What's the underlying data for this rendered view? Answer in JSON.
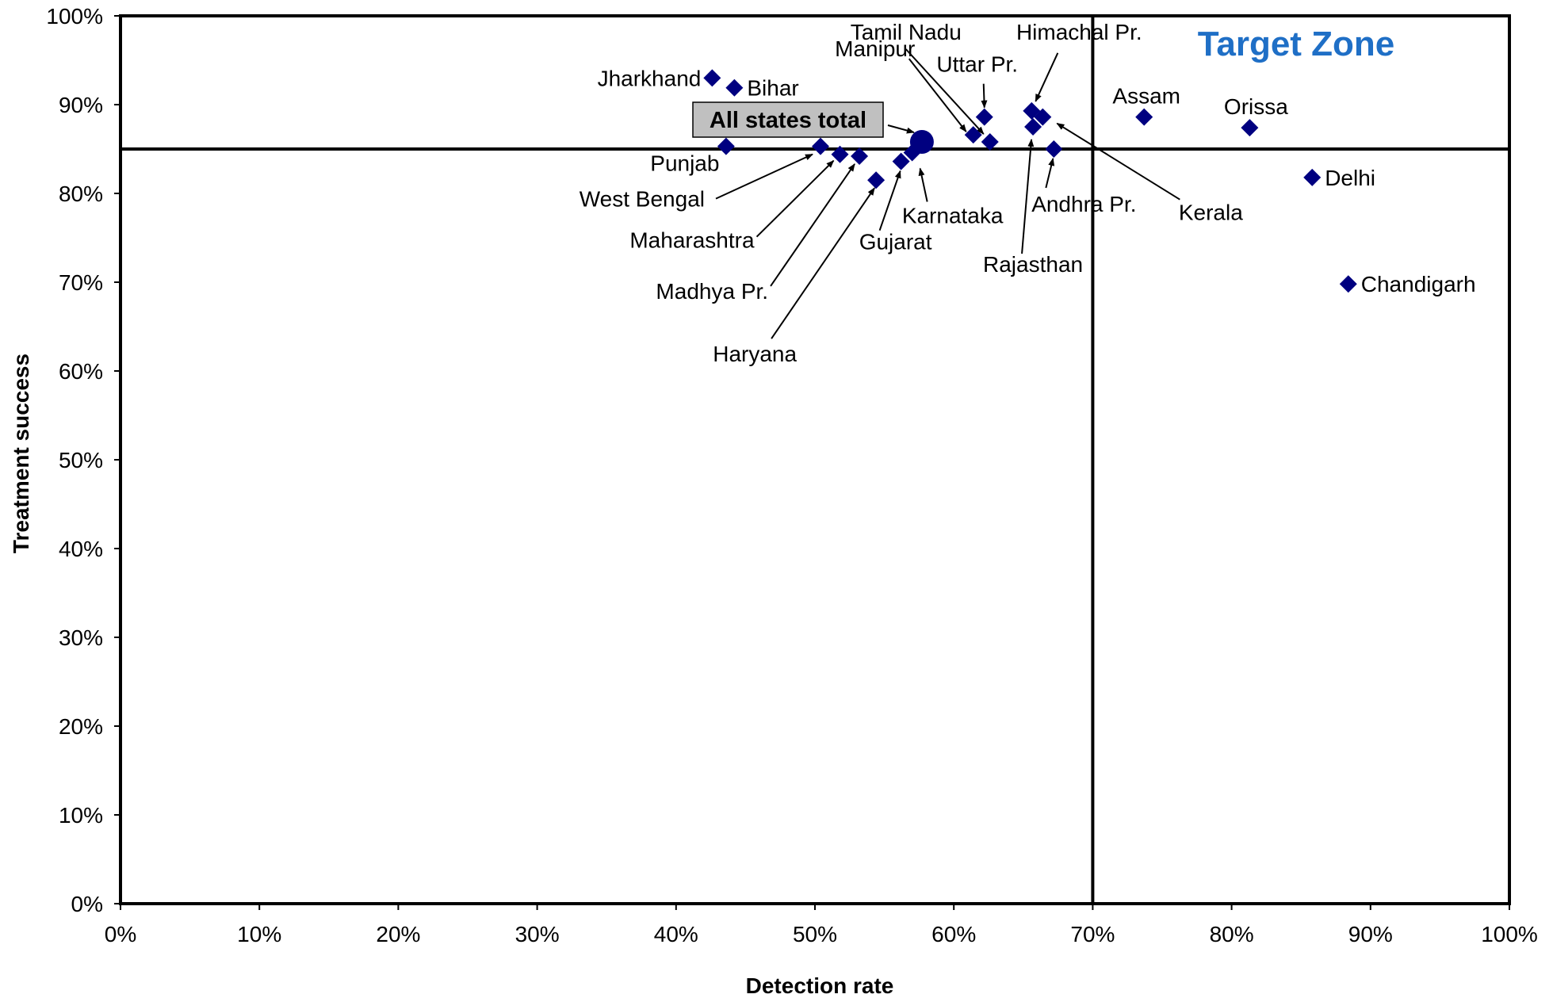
{
  "chart_data": {
    "type": "scatter",
    "title": "",
    "xlabel": "Detection rate",
    "ylabel": "Treatment success",
    "xlim": [
      0,
      100
    ],
    "ylim": [
      0,
      100
    ],
    "x_ticks": [
      "0%",
      "10%",
      "20%",
      "30%",
      "40%",
      "50%",
      "60%",
      "70%",
      "80%",
      "90%",
      "100%"
    ],
    "y_ticks": [
      "0%",
      "10%",
      "20%",
      "30%",
      "40%",
      "50%",
      "60%",
      "70%",
      "80%",
      "90%",
      "100%"
    ],
    "grid": false,
    "target_lines": {
      "x": 70,
      "y": 85
    },
    "zone_label": "Target Zone",
    "colors": {
      "marker": "#000080",
      "zone_label": "#1F6FC6",
      "total_box": "#C0C0C0"
    },
    "total": {
      "name": "All states total",
      "x": 57.7,
      "y": 85.8
    },
    "points": [
      {
        "name": "Jharkhand",
        "x": 42.6,
        "y": 93.0
      },
      {
        "name": "Bihar",
        "x": 44.2,
        "y": 91.9
      },
      {
        "name": "Punjab",
        "x": 43.6,
        "y": 85.3
      },
      {
        "name": "West Bengal",
        "x": 50.4,
        "y": 85.3
      },
      {
        "name": "Maharashtra",
        "x": 51.8,
        "y": 84.4
      },
      {
        "name": "Madhya Pr.",
        "x": 53.2,
        "y": 84.2
      },
      {
        "name": "Haryana",
        "x": 54.4,
        "y": 81.5
      },
      {
        "name": "Gujarat",
        "x": 56.2,
        "y": 83.6
      },
      {
        "name": "Karnataka",
        "x": 57.0,
        "y": 84.6
      },
      {
        "name": "Manipur",
        "x": 61.4,
        "y": 86.6
      },
      {
        "name": "Tamil Nadu",
        "x": 62.6,
        "y": 85.8
      },
      {
        "name": "Uttar Pr.",
        "x": 62.2,
        "y": 88.6
      },
      {
        "name": "Himachal Pr.",
        "x": 65.6,
        "y": 89.3
      },
      {
        "name": "Rajasthan",
        "x": 65.7,
        "y": 87.5
      },
      {
        "name": "Kerala",
        "x": 66.4,
        "y": 88.6
      },
      {
        "name": "Andhra Pr.",
        "x": 67.2,
        "y": 85.0
      },
      {
        "name": "Assam",
        "x": 73.7,
        "y": 88.6
      },
      {
        "name": "Orissa",
        "x": 81.3,
        "y": 87.4
      },
      {
        "name": "Delhi",
        "x": 85.8,
        "y": 81.8
      },
      {
        "name": "Chandigarh",
        "x": 88.4,
        "y": 69.8
      }
    ]
  }
}
